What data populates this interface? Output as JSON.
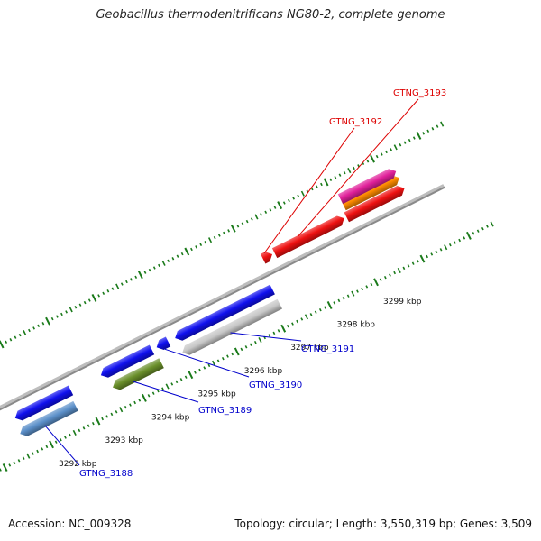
{
  "header": {
    "title": "Geobacillus thermodenitrificans NG80-2, complete genome"
  },
  "footer": {
    "accession": "Accession: NC_009328",
    "summary": "Topology: circular; Length: 3,550,319 bp; Genes: 3,509"
  },
  "scale": {
    "ticks": [
      {
        "label": "3292 kbp",
        "kbp": 3292
      },
      {
        "label": "3293 kbp",
        "kbp": 3293
      },
      {
        "label": "3294 kbp",
        "kbp": 3294
      },
      {
        "label": "3295 kbp",
        "kbp": 3295
      },
      {
        "label": "3296 kbp",
        "kbp": 3296
      },
      {
        "label": "3297 kbp",
        "kbp": 3297
      },
      {
        "label": "3298 kbp",
        "kbp": 3298
      },
      {
        "label": "3299 kbp",
        "kbp": 3299
      }
    ]
  },
  "colors": {
    "backbone": "#8a8a8a",
    "tick": "#1a7a1a",
    "label_forward": "#dd0000",
    "label_reverse": "#0000cc"
  },
  "features": [
    {
      "name": "GTNG_3188",
      "color": "#5b8fc9",
      "strand": "reverse",
      "start_kbp": 3291.55,
      "end_kbp": 3292.75
    },
    {
      "name": "",
      "color": "#1010ee",
      "strand": "reverse",
      "start_kbp": 3291.6,
      "end_kbp": 3292.8
    },
    {
      "name": "GTNG_3189",
      "color": "#6a8f2a",
      "strand": "reverse",
      "start_kbp": 3293.55,
      "end_kbp": 3294.6
    },
    {
      "name": "",
      "color": "#1010ee",
      "strand": "reverse",
      "start_kbp": 3293.45,
      "end_kbp": 3294.55
    },
    {
      "name": "GTNG_3190",
      "color": "#1010ee",
      "strand": "reverse",
      "start_kbp": 3294.65,
      "end_kbp": 3294.9
    },
    {
      "name": "GTNG_3191",
      "color": "#c8c8c8",
      "strand": "reverse",
      "start_kbp": 3295.05,
      "end_kbp": 3297.15
    },
    {
      "name": "",
      "color": "#1010ee",
      "strand": "reverse",
      "start_kbp": 3295.05,
      "end_kbp": 3297.15
    },
    {
      "name": "GTNG_3192",
      "color": "#ee1111",
      "strand": "forward",
      "start_kbp": 3297.25,
      "end_kbp": 3297.45
    },
    {
      "name": "GTNG_3193",
      "color": "#ee1111",
      "strand": "forward",
      "start_kbp": 3297.5,
      "end_kbp": 3299.0
    },
    {
      "name": "",
      "color": "#ee1111",
      "strand": "forward",
      "start_kbp": 3299.05,
      "end_kbp": 3300.3
    },
    {
      "name": "",
      "color": "#ff8c00",
      "strand": "forward",
      "start_kbp": 3299.1,
      "end_kbp": 3300.3
    },
    {
      "name": "",
      "color": "#e0209a",
      "strand": "forward",
      "start_kbp": 3299.1,
      "end_kbp": 3300.3
    }
  ]
}
